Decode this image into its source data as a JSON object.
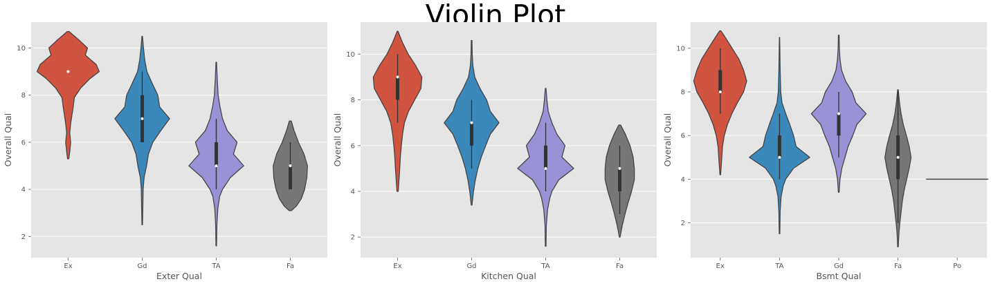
{
  "title": "Violin Plot",
  "chart_data": [
    {
      "type": "violin",
      "xlabel": "Exter Qual",
      "ylabel": "Overall Qual",
      "categories": [
        "Ex",
        "Gd",
        "TA",
        "Fa"
      ],
      "ylim": [
        1.1,
        11.1
      ],
      "yticks": [
        2,
        4,
        6,
        8,
        10
      ],
      "grid": true,
      "violins": [
        {
          "category": "Ex",
          "color": "#d15440",
          "min": 5.3,
          "max": 10.7,
          "q1": 9,
          "median": 9,
          "q3": 9,
          "whisker": [
            9,
            9
          ],
          "profile": [
            [
              5.3,
              0.02
            ],
            [
              5.6,
              0.05
            ],
            [
              6.0,
              0.08
            ],
            [
              6.4,
              0.05
            ],
            [
              6.8,
              0.08
            ],
            [
              7.4,
              0.15
            ],
            [
              7.9,
              0.2
            ],
            [
              8.3,
              0.4
            ],
            [
              8.7,
              0.7
            ],
            [
              9.0,
              1.0
            ],
            [
              9.3,
              0.9
            ],
            [
              9.7,
              0.55
            ],
            [
              10.0,
              0.62
            ],
            [
              10.3,
              0.38
            ],
            [
              10.6,
              0.12
            ],
            [
              10.7,
              0.03
            ]
          ]
        },
        {
          "category": "Gd",
          "color": "#3b89bb",
          "min": 2.5,
          "max": 10.5,
          "q1": 6,
          "median": 7,
          "q3": 8,
          "whisker": [
            6,
            9
          ],
          "profile": [
            [
              2.5,
              0.01
            ],
            [
              3.2,
              0.02
            ],
            [
              4.0,
              0.03
            ],
            [
              4.5,
              0.06
            ],
            [
              5.0,
              0.14
            ],
            [
              5.5,
              0.2
            ],
            [
              6.0,
              0.34
            ],
            [
              6.5,
              0.6
            ],
            [
              7.0,
              0.88
            ],
            [
              7.5,
              0.56
            ],
            [
              8.0,
              0.5
            ],
            [
              8.5,
              0.32
            ],
            [
              9.0,
              0.15
            ],
            [
              9.5,
              0.08
            ],
            [
              10.0,
              0.04
            ],
            [
              10.5,
              0.01
            ]
          ]
        },
        {
          "category": "TA",
          "color": "#9a92d6",
          "min": 1.6,
          "max": 9.4,
          "q1": 5,
          "median": 5,
          "q3": 6,
          "whisker": [
            4,
            7
          ],
          "profile": [
            [
              1.6,
              0.01
            ],
            [
              2.5,
              0.02
            ],
            [
              3.2,
              0.05
            ],
            [
              3.7,
              0.11
            ],
            [
              4.0,
              0.2
            ],
            [
              4.5,
              0.45
            ],
            [
              5.0,
              0.88
            ],
            [
              5.5,
              0.55
            ],
            [
              6.0,
              0.67
            ],
            [
              6.5,
              0.35
            ],
            [
              7.0,
              0.2
            ],
            [
              7.5,
              0.12
            ],
            [
              8.0,
              0.06
            ],
            [
              8.7,
              0.03
            ],
            [
              9.4,
              0.01
            ]
          ]
        },
        {
          "category": "Fa",
          "color": "#777777",
          "min": 3.1,
          "max": 6.9,
          "q1": 4,
          "median": 5,
          "q3": 5,
          "whisker": [
            4,
            6
          ],
          "profile": [
            [
              3.1,
              0.04
            ],
            [
              3.3,
              0.2
            ],
            [
              3.6,
              0.35
            ],
            [
              4.0,
              0.46
            ],
            [
              4.5,
              0.53
            ],
            [
              5.0,
              0.55
            ],
            [
              5.5,
              0.44
            ],
            [
              6.0,
              0.26
            ],
            [
              6.5,
              0.12
            ],
            [
              6.9,
              0.03
            ]
          ]
        }
      ]
    },
    {
      "type": "violin",
      "xlabel": "Kitchen Qual",
      "ylabel": "Overall Qual",
      "categories": [
        "Ex",
        "Gd",
        "TA",
        "Fa"
      ],
      "ylim": [
        1.1,
        11.4
      ],
      "yticks": [
        2,
        4,
        6,
        8,
        10
      ],
      "grid": true,
      "violins": [
        {
          "category": "Ex",
          "color": "#d15440",
          "min": 4.0,
          "max": 11.0,
          "q1": 8,
          "median": 9,
          "q3": 9,
          "whisker": [
            7,
            10
          ],
          "profile": [
            [
              4.0,
              0.02
            ],
            [
              4.6,
              0.05
            ],
            [
              5.0,
              0.07
            ],
            [
              5.5,
              0.09
            ],
            [
              6.0,
              0.12
            ],
            [
              6.5,
              0.16
            ],
            [
              7.0,
              0.22
            ],
            [
              7.5,
              0.35
            ],
            [
              8.0,
              0.55
            ],
            [
              8.5,
              0.75
            ],
            [
              9.0,
              0.78
            ],
            [
              9.5,
              0.58
            ],
            [
              10.0,
              0.34
            ],
            [
              10.5,
              0.16
            ],
            [
              11.0,
              0.01
            ]
          ]
        },
        {
          "category": "Gd",
          "color": "#3b89bb",
          "min": 3.4,
          "max": 10.6,
          "q1": 6,
          "median": 7,
          "q3": 7,
          "whisker": [
            5,
            8
          ],
          "profile": [
            [
              3.4,
              0.01
            ],
            [
              4.0,
              0.06
            ],
            [
              4.5,
              0.12
            ],
            [
              5.0,
              0.2
            ],
            [
              5.5,
              0.31
            ],
            [
              6.0,
              0.45
            ],
            [
              6.5,
              0.6
            ],
            [
              7.0,
              0.88
            ],
            [
              7.5,
              0.6
            ],
            [
              8.0,
              0.48
            ],
            [
              8.5,
              0.27
            ],
            [
              9.0,
              0.1
            ],
            [
              9.5,
              0.04
            ],
            [
              10.0,
              0.02
            ],
            [
              10.6,
              0.01
            ]
          ]
        },
        {
          "category": "TA",
          "color": "#9a92d6",
          "min": 1.6,
          "max": 8.5,
          "q1": 5,
          "median": 5,
          "q3": 6,
          "whisker": [
            4,
            7
          ],
          "profile": [
            [
              1.6,
              0.01
            ],
            [
              2.5,
              0.02
            ],
            [
              3.2,
              0.06
            ],
            [
              3.7,
              0.13
            ],
            [
              4.0,
              0.2
            ],
            [
              4.5,
              0.42
            ],
            [
              5.0,
              0.9
            ],
            [
              5.5,
              0.52
            ],
            [
              6.0,
              0.62
            ],
            [
              6.5,
              0.36
            ],
            [
              7.0,
              0.2
            ],
            [
              7.5,
              0.08
            ],
            [
              8.0,
              0.04
            ],
            [
              8.5,
              0.01
            ]
          ]
        },
        {
          "category": "Fa",
          "color": "#777777",
          "min": 2.0,
          "max": 6.9,
          "q1": 4,
          "median": 5,
          "q3": 5,
          "whisker": [
            3,
            6
          ],
          "profile": [
            [
              2.0,
              0.01
            ],
            [
              2.5,
              0.08
            ],
            [
              3.0,
              0.17
            ],
            [
              3.5,
              0.27
            ],
            [
              4.0,
              0.38
            ],
            [
              4.5,
              0.47
            ],
            [
              5.0,
              0.47
            ],
            [
              5.5,
              0.43
            ],
            [
              6.0,
              0.33
            ],
            [
              6.5,
              0.18
            ],
            [
              6.9,
              0.03
            ]
          ]
        }
      ]
    },
    {
      "type": "violin",
      "xlabel": "Bsmt Qual",
      "ylabel": "Overall Qual",
      "categories": [
        "Ex",
        "TA",
        "Gd",
        "Fa",
        "Po"
      ],
      "ylim": [
        0.4,
        11.2
      ],
      "yticks": [
        2,
        4,
        6,
        8,
        10
      ],
      "grid": true,
      "violins": [
        {
          "category": "Ex",
          "color": "#d15440",
          "min": 4.2,
          "max": 10.8,
          "q1": 8,
          "median": 8,
          "q3": 9,
          "whisker": [
            7,
            10
          ],
          "profile": [
            [
              4.2,
              0.01
            ],
            [
              4.8,
              0.04
            ],
            [
              5.5,
              0.07
            ],
            [
              6.0,
              0.13
            ],
            [
              6.5,
              0.23
            ],
            [
              7.0,
              0.37
            ],
            [
              7.5,
              0.55
            ],
            [
              8.0,
              0.75
            ],
            [
              8.5,
              0.85
            ],
            [
              9.0,
              0.75
            ],
            [
              9.5,
              0.6
            ],
            [
              10.0,
              0.38
            ],
            [
              10.5,
              0.16
            ],
            [
              10.8,
              0.02
            ]
          ]
        },
        {
          "category": "TA",
          "color": "#3b89bb",
          "min": 1.5,
          "max": 10.5,
          "q1": 5,
          "median": 5,
          "q3": 6,
          "whisker": [
            4,
            7
          ],
          "profile": [
            [
              1.5,
              0.01
            ],
            [
              2.5,
              0.02
            ],
            [
              3.2,
              0.05
            ],
            [
              3.7,
              0.12
            ],
            [
              4.0,
              0.2
            ],
            [
              4.5,
              0.45
            ],
            [
              5.0,
              0.97
            ],
            [
              5.5,
              0.53
            ],
            [
              6.0,
              0.45
            ],
            [
              6.5,
              0.33
            ],
            [
              7.0,
              0.2
            ],
            [
              7.5,
              0.08
            ],
            [
              8.0,
              0.04
            ],
            [
              9.0,
              0.02
            ],
            [
              10.0,
              0.01
            ],
            [
              10.5,
              0.005
            ]
          ]
        },
        {
          "category": "Gd",
          "color": "#9a92d6",
          "min": 3.4,
          "max": 10.6,
          "q1": 6,
          "median": 7,
          "q3": 7,
          "whisker": [
            5,
            8
          ],
          "profile": [
            [
              3.4,
              0.01
            ],
            [
              4.0,
              0.04
            ],
            [
              4.5,
              0.1
            ],
            [
              5.0,
              0.2
            ],
            [
              5.5,
              0.3
            ],
            [
              6.0,
              0.45
            ],
            [
              6.5,
              0.58
            ],
            [
              7.0,
              0.88
            ],
            [
              7.5,
              0.55
            ],
            [
              8.0,
              0.43
            ],
            [
              8.5,
              0.22
            ],
            [
              9.0,
              0.09
            ],
            [
              9.5,
              0.04
            ],
            [
              10.0,
              0.02
            ],
            [
              10.6,
              0.01
            ]
          ]
        },
        {
          "category": "Fa",
          "color": "#777777",
          "min": 0.9,
          "max": 8.1,
          "q1": 4,
          "median": 5,
          "q3": 6,
          "whisker": [
            2,
            8
          ],
          "profile": [
            [
              0.9,
              0.01
            ],
            [
              1.5,
              0.03
            ],
            [
              2.0,
              0.06
            ],
            [
              2.5,
              0.1
            ],
            [
              3.0,
              0.14
            ],
            [
              3.5,
              0.2
            ],
            [
              4.0,
              0.28
            ],
            [
              4.5,
              0.36
            ],
            [
              5.0,
              0.42
            ],
            [
              5.5,
              0.36
            ],
            [
              6.0,
              0.27
            ],
            [
              6.5,
              0.17
            ],
            [
              7.0,
              0.1
            ],
            [
              7.5,
              0.05
            ],
            [
              8.1,
              0.01
            ]
          ]
        },
        {
          "category": "Po",
          "color": "#777777",
          "min": 4,
          "max": 4,
          "q1": 4,
          "median": 4,
          "q3": 4,
          "whisker": [
            4,
            4
          ],
          "flat": true,
          "profile": []
        }
      ]
    }
  ]
}
